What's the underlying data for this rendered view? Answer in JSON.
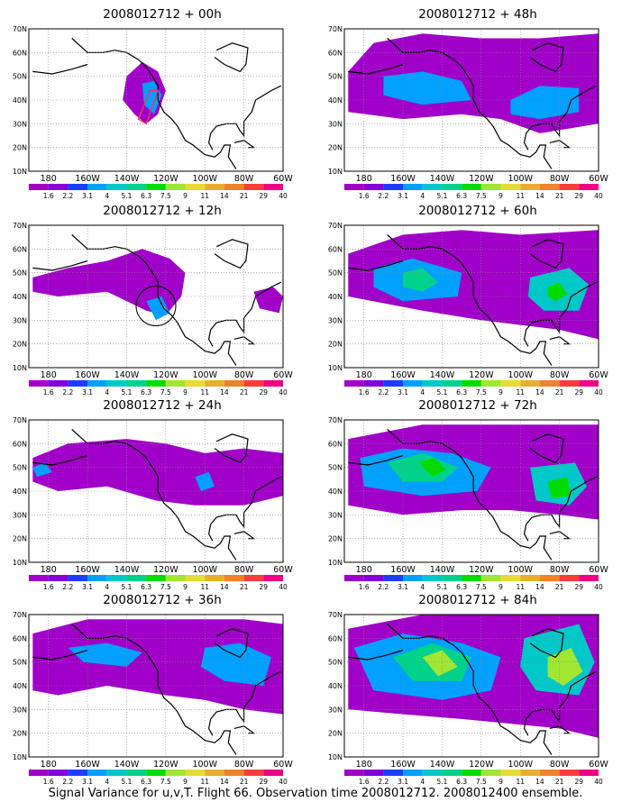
{
  "panels": [
    {
      "title": "2008012712 + 00h",
      "lead_hours": 0
    },
    {
      "title": "2008012712 + 48h",
      "lead_hours": 48
    },
    {
      "title": "2008012712 + 12h",
      "lead_hours": 12
    },
    {
      "title": "2008012712 + 60h",
      "lead_hours": 60
    },
    {
      "title": "2008012712 + 24h",
      "lead_hours": 24
    },
    {
      "title": "2008012712 + 72h",
      "lead_hours": 72
    },
    {
      "title": "2008012712 + 36h",
      "lead_hours": 36
    },
    {
      "title": "2008012712 + 84h",
      "lead_hours": 84
    }
  ],
  "lat_labels": [
    "70N",
    "60N",
    "50N",
    "40N",
    "30N",
    "20N",
    "10N"
  ],
  "lon_labels": [
    "180",
    "160W",
    "140W",
    "120W",
    "100W",
    "80W",
    "60W"
  ],
  "colorbar": {
    "labels": [
      "1.6",
      "2.2",
      "3.1",
      "4",
      "5.1",
      "6.3",
      "7.5",
      "9",
      "11",
      "14",
      "21",
      "29",
      "40"
    ],
    "colors": [
      "#a000c8",
      "#8200dc",
      "#1e3cff",
      "#00a0ff",
      "#00c8c8",
      "#00d28c",
      "#00dc00",
      "#a0e632",
      "#e6dc32",
      "#e6af2d",
      "#f08228",
      "#fa3c3c",
      "#f00082"
    ]
  },
  "caption": "Signal Variance for u,v,T. Flight 66. Observation time 2008012712. 2008012400 ensemble."
}
